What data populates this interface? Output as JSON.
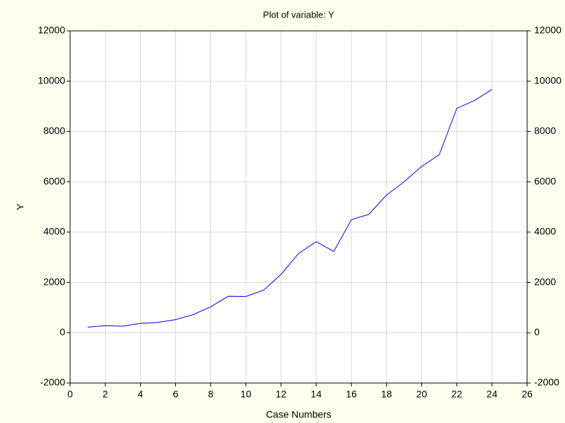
{
  "chart_data": {
    "type": "line",
    "title": "Plot of variable: Y",
    "x_label": "Case Numbers",
    "y_label": "Y",
    "x": [
      1,
      2,
      3,
      4,
      5,
      6,
      7,
      8,
      9,
      10,
      11,
      12,
      13,
      14,
      15,
      16,
      17,
      18,
      19,
      20,
      21,
      22,
      23,
      24
    ],
    "series": [
      {
        "name": "Y",
        "color": "#0000ff",
        "values": [
          220,
          280,
          260,
          370,
          410,
          520,
          720,
          1030,
          1450,
          1440,
          1690,
          2320,
          3150,
          3620,
          3230,
          4490,
          4710,
          5470,
          6000,
          6610,
          7080,
          8920,
          9230,
          9670
        ]
      }
    ],
    "xlim": [
      0,
      26
    ],
    "xticks": [
      0,
      2,
      4,
      6,
      8,
      10,
      12,
      14,
      16,
      18,
      20,
      22,
      24,
      26
    ],
    "ylim": [
      -2000,
      12000
    ],
    "yticks": [
      -2000,
      0,
      2000,
      4000,
      6000,
      8000,
      10000,
      12000
    ],
    "grid": true
  }
}
